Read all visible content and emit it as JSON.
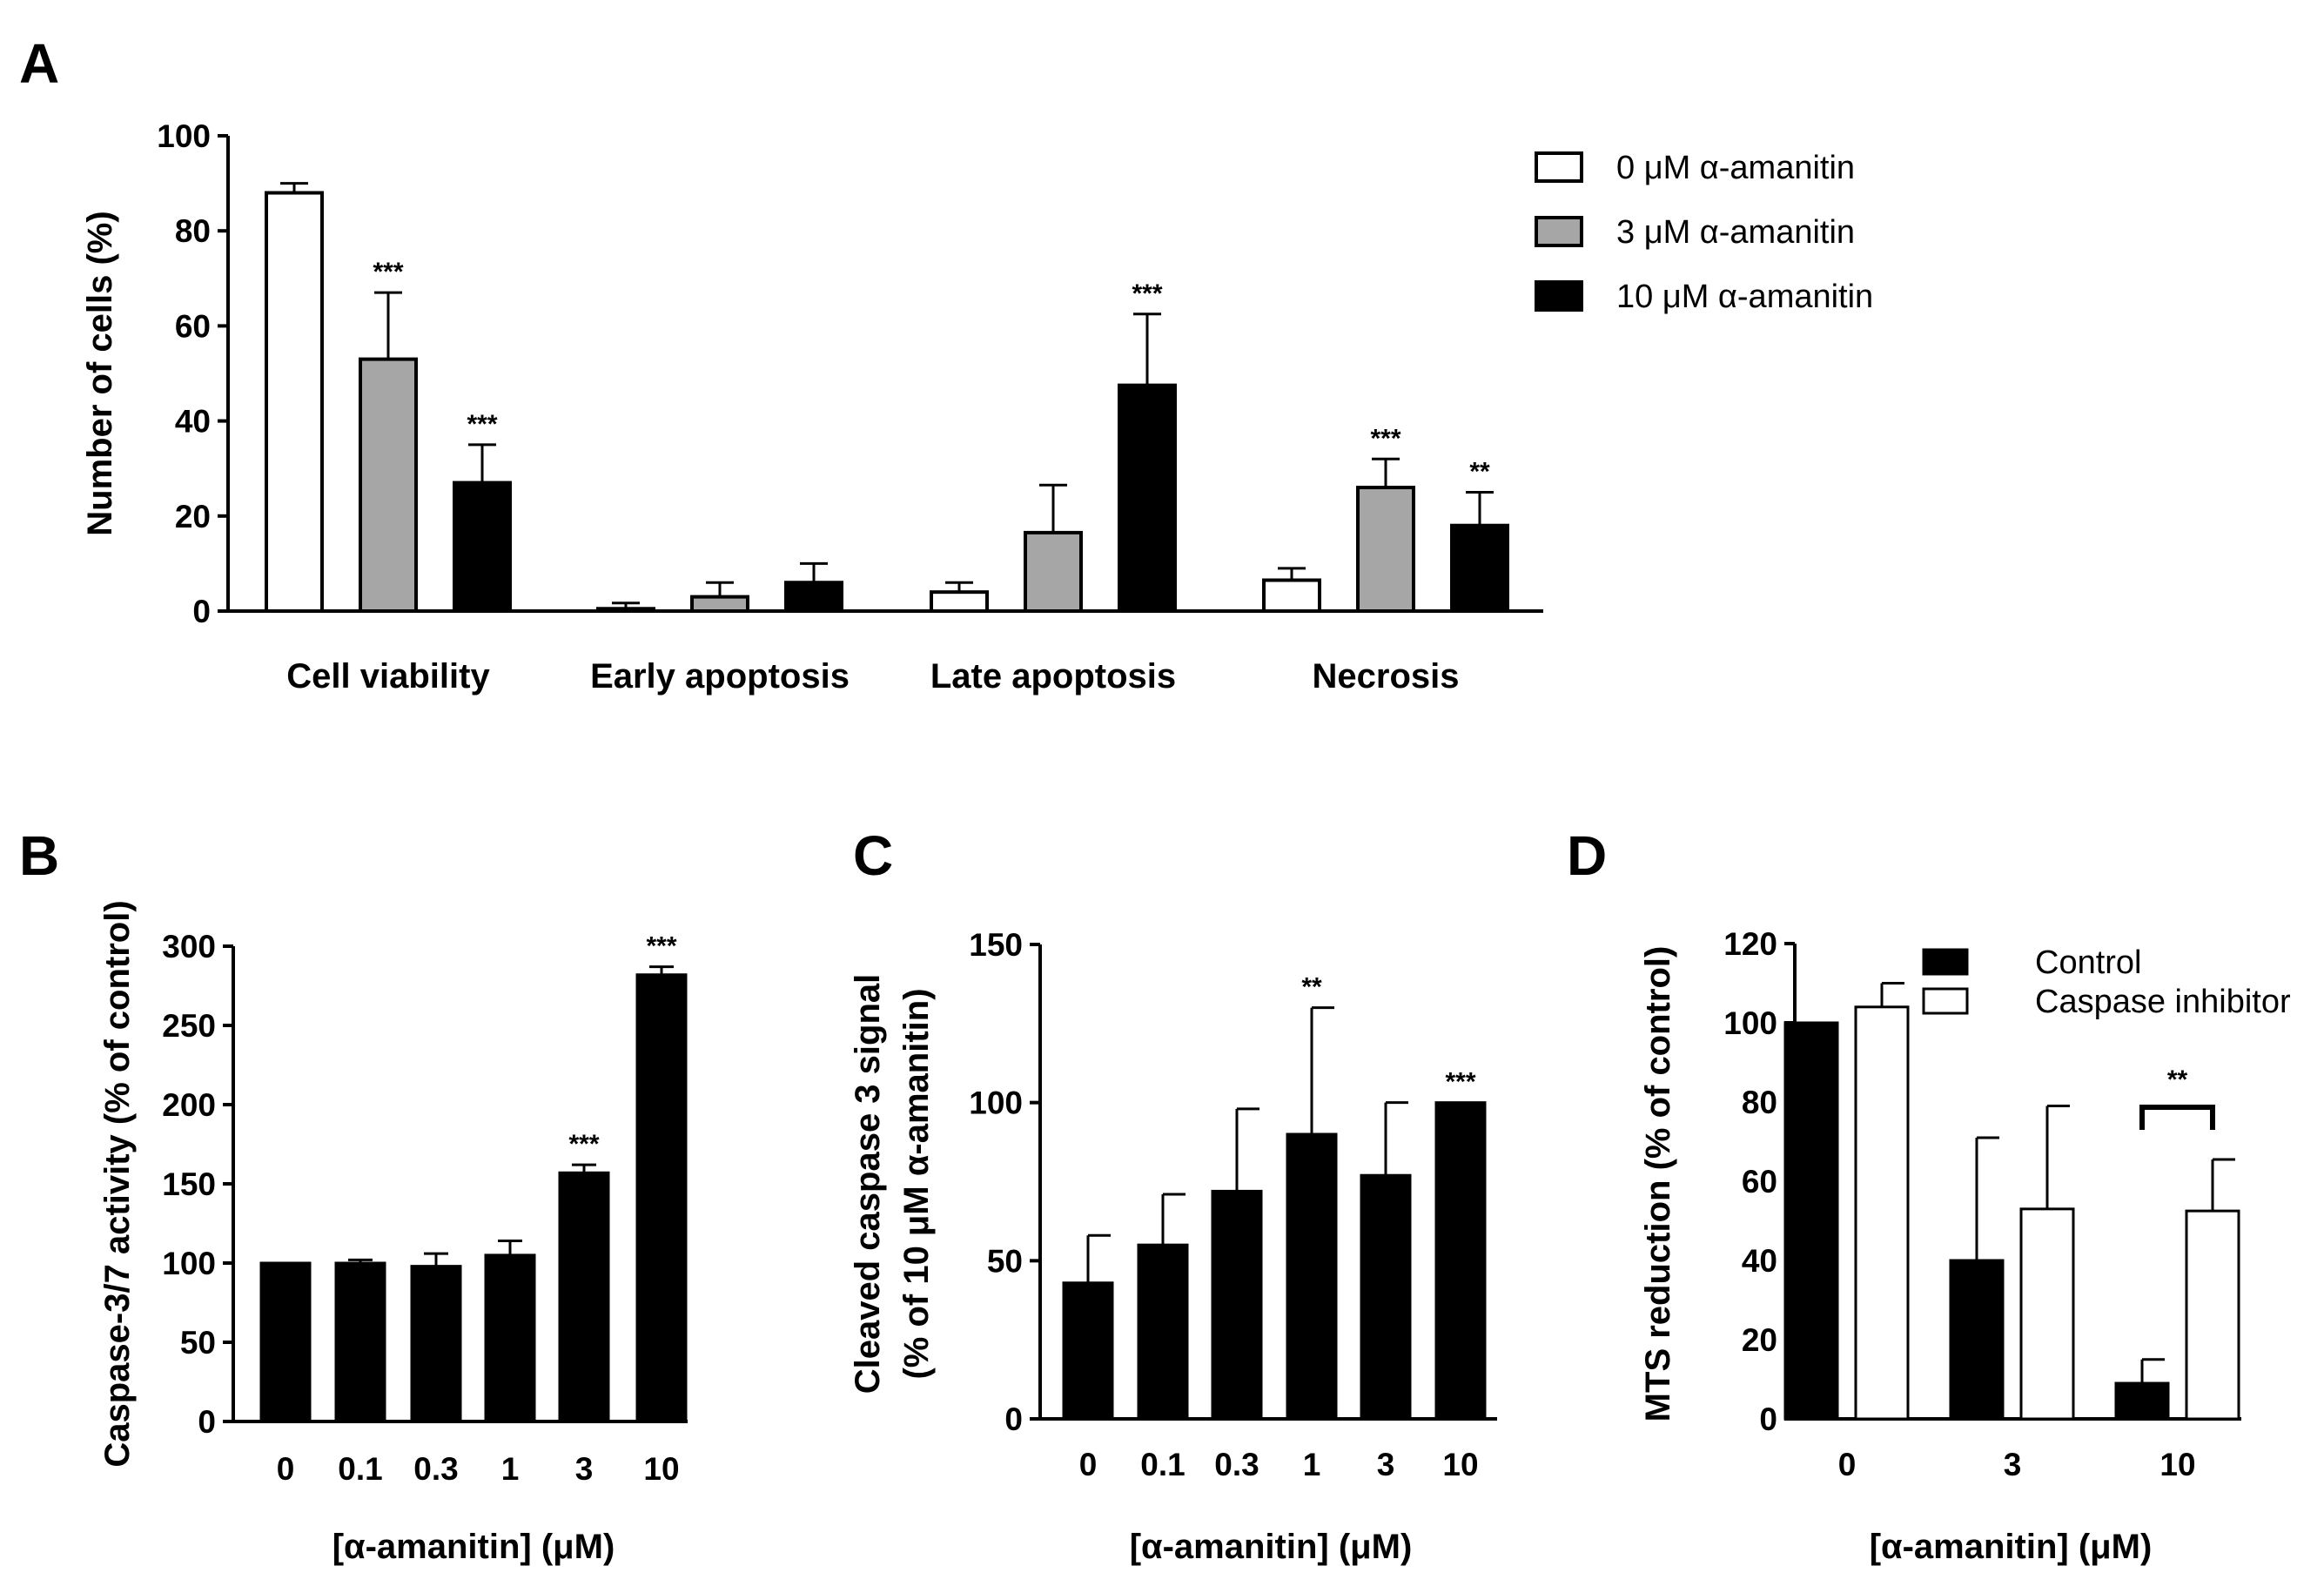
{
  "chart_data": [
    {
      "panel": "A",
      "type": "bar",
      "ylabel": "Number of cells (%)",
      "xlabel": "",
      "ylim": [
        0,
        100
      ],
      "yticks": [
        "0",
        "20",
        "40",
        "60",
        "80",
        "100"
      ],
      "categories": [
        "Cell viability",
        "Early apoptosis",
        "Late apoptosis",
        "Necrosis"
      ],
      "legend_position": "top-right",
      "series": [
        {
          "name": "0 μM α-amanitin",
          "fill": "#ffffff",
          "values": [
            88,
            0.5,
            4,
            6.5
          ],
          "errors": [
            2,
            1.2,
            2,
            2.5
          ],
          "sig": [
            "",
            "",
            "",
            ""
          ]
        },
        {
          "name": "3 μM α-amanitin",
          "fill": "#a6a6a6",
          "values": [
            53,
            3,
            16.5,
            26
          ],
          "errors": [
            14,
            3,
            10,
            6
          ],
          "sig": [
            "***",
            "",
            "",
            "***"
          ]
        },
        {
          "name": "10 μM α-amanitin",
          "fill": "#000000",
          "values": [
            27,
            6,
            47.5,
            18
          ],
          "errors": [
            8,
            4,
            15,
            7
          ],
          "sig": [
            "***",
            "",
            "***",
            "**"
          ]
        }
      ]
    },
    {
      "panel": "B",
      "type": "bar",
      "ylabel": "Caspase-3/7 activity (% of control)",
      "xlabel": "[α-amanitin] (μM)",
      "ylim": [
        0,
        300
      ],
      "yticks": [
        "0",
        "50",
        "100",
        "150",
        "200",
        "250",
        "300"
      ],
      "categories": [
        "0",
        "0.1",
        "0.3",
        "1",
        "3",
        "10"
      ],
      "values": [
        100,
        100,
        98,
        105,
        157,
        282
      ],
      "errors": [
        0,
        2,
        8,
        9,
        5,
        5
      ],
      "sig": [
        "",
        "",
        "",
        "",
        "***",
        "***"
      ],
      "fill": "#000000"
    },
    {
      "panel": "C",
      "type": "bar",
      "ylabel_lines": [
        "Cleaved caspase 3 signal",
        "(% of 10 μM α-amanitin)"
      ],
      "xlabel": "[α-amanitin] (μM)",
      "ylim": [
        0,
        150
      ],
      "yticks": [
        "0",
        "50",
        "100",
        "150"
      ],
      "categories": [
        "0",
        "0.1",
        "0.3",
        "1",
        "3",
        "10"
      ],
      "values": [
        43,
        55,
        72,
        90,
        77,
        100
      ],
      "errors": [
        15,
        16,
        26,
        40,
        23,
        0
      ],
      "sig": [
        "",
        "",
        "",
        "**",
        "",
        "***"
      ],
      "fill": "#000000"
    },
    {
      "panel": "D",
      "type": "bar",
      "ylabel": "MTS reduction (% of control)",
      "xlabel": "[α-amanitin] (μM)",
      "ylim": [
        0,
        120
      ],
      "yticks": [
        "0",
        "20",
        "40",
        "60",
        "80",
        "100",
        "120"
      ],
      "categories": [
        "0",
        "3",
        "10"
      ],
      "legend_position": "top-right",
      "series": [
        {
          "name": "Control",
          "fill": "#000000",
          "values": [
            100,
            40,
            9
          ],
          "errors": [
            0,
            31,
            6
          ]
        },
        {
          "name": "Caspase inhibitor",
          "fill": "#ffffff",
          "values": [
            104,
            53,
            52.5
          ],
          "errors": [
            6,
            26,
            13
          ]
        }
      ],
      "bracket": {
        "category": "10",
        "label": "**"
      }
    }
  ]
}
